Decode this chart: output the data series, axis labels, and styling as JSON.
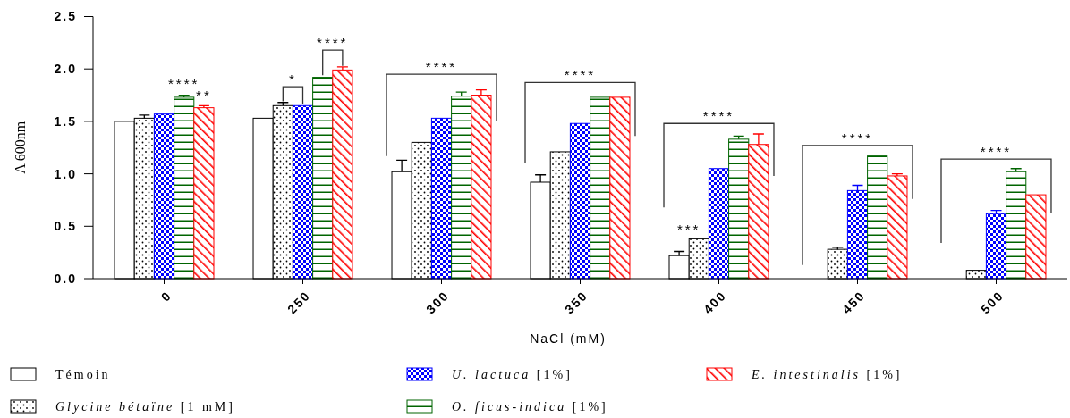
{
  "chart_data": {
    "type": "bar",
    "xlabel": "NaCl (mM)",
    "ylabel": "A 600nm",
    "categories": [
      "0",
      "250",
      "300",
      "350",
      "400",
      "450",
      "500"
    ],
    "series": [
      {
        "name": "Témoin",
        "color": "#000000",
        "values": [
          1.5,
          1.53,
          1.02,
          0.92,
          0.22,
          0,
          0
        ],
        "errors": [
          null,
          null,
          0.11,
          0.07,
          0.04,
          null,
          null
        ]
      },
      {
        "name": "Glycine bétaïne [1 mM]",
        "color": "#000000",
        "values": [
          1.53,
          1.65,
          1.3,
          1.21,
          0.38,
          0.28,
          0.08
        ],
        "errors": [
          0.03,
          0.03,
          null,
          null,
          null,
          0.02,
          null
        ]
      },
      {
        "name": "U. lactuca [1%]",
        "color": "#0000ff",
        "values": [
          1.57,
          1.65,
          1.53,
          1.48,
          1.05,
          0.84,
          0.62
        ],
        "errors": [
          null,
          null,
          null,
          null,
          null,
          0.05,
          0.03
        ]
      },
      {
        "name": "O. ficus-indica [1%]",
        "color": "#006400",
        "values": [
          1.73,
          1.92,
          1.74,
          1.73,
          1.33,
          1.17,
          1.02
        ],
        "errors": [
          0.02,
          null,
          0.04,
          null,
          0.03,
          null,
          0.03
        ]
      },
      {
        "name": "E. intestinalis [1%]",
        "color": "#ff0000",
        "values": [
          1.63,
          1.99,
          1.75,
          1.73,
          1.28,
          0.98,
          0.8
        ],
        "errors": [
          0.02,
          0.03,
          0.05,
          null,
          0.1,
          0.02,
          null
        ]
      }
    ],
    "ylim": [
      0,
      2.5
    ],
    "yticks": [
      {
        "value": 0,
        "label": "0.0"
      },
      {
        "value": 0.5,
        "label": "0.5"
      },
      {
        "value": 1,
        "label": "1.0"
      },
      {
        "value": 1.5,
        "label": "1.5"
      },
      {
        "value": 2,
        "label": "2.0"
      },
      {
        "value": 2.5,
        "label": "2.5"
      }
    ],
    "grid": false,
    "legend": "bottom",
    "annotations": [
      "****",
      "**",
      "*",
      "****",
      "****",
      "****",
      "***",
      "****",
      "****",
      "****"
    ]
  }
}
